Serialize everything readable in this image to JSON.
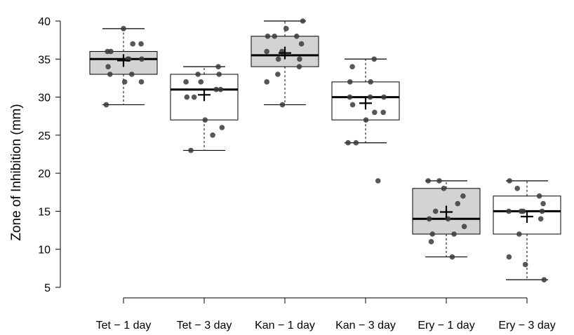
{
  "chart_data": {
    "type": "boxplot",
    "title": "",
    "xlabel": "",
    "ylabel": "Zone of Inhibition (mm)",
    "ylim": [
      5,
      40
    ],
    "yticks": [
      5,
      10,
      15,
      20,
      25,
      30,
      35,
      40
    ],
    "grid": false,
    "legend": "none",
    "colors": {
      "shaded": "#d3d3d3",
      "unshaded": "#ffffff",
      "points": "#3a3a3a",
      "lines": "#000000"
    },
    "categories": [
      "Tet − 1 day",
      "Tet − 3 day",
      "Kan − 1 day",
      "Kan − 3 day",
      "Ery − 1 day",
      "Ery − 3 day"
    ],
    "boxes": [
      {
        "category": "Tet − 1 day",
        "shaded": true,
        "whisker_low": 29,
        "q1": 33,
        "median": 35,
        "q3": 36,
        "whisker_high": 39,
        "mean": 34.8,
        "points": [
          39,
          37,
          37,
          36,
          36,
          35,
          35,
          35,
          34,
          33,
          33,
          32,
          32,
          29
        ]
      },
      {
        "category": "Tet − 3 day",
        "shaded": false,
        "whisker_low": 23,
        "q1": 27,
        "median": 31,
        "q3": 33,
        "whisker_high": 34,
        "mean": 30.3,
        "points": [
          34,
          33,
          33,
          32,
          32,
          31,
          31,
          30,
          30,
          27,
          26,
          25,
          23
        ]
      },
      {
        "category": "Kan − 1 day",
        "shaded": true,
        "whisker_low": 29,
        "q1": 34,
        "median": 35.5,
        "q3": 38,
        "whisker_high": 40,
        "mean": 35.8,
        "points": [
          40,
          39,
          38,
          38,
          38,
          37,
          36,
          36,
          35,
          35,
          34,
          33,
          32,
          29
        ]
      },
      {
        "category": "Kan − 3 day",
        "shaded": false,
        "whisker_low": 24,
        "q1": 27,
        "median": 30,
        "q3": 32,
        "whisker_high": 35,
        "mean": 29.2,
        "points": [
          35,
          34,
          32,
          32,
          30,
          30,
          30,
          29,
          28,
          28,
          27,
          24,
          24,
          19
        ]
      },
      {
        "category": "Ery − 1 day",
        "shaded": true,
        "whisker_low": 9,
        "q1": 12,
        "median": 14,
        "q3": 18,
        "whisker_high": 19,
        "mean": 14.9,
        "points": [
          19,
          19,
          18,
          17,
          16,
          15,
          14,
          14,
          13,
          12,
          12,
          11,
          9
        ]
      },
      {
        "category": "Ery − 3 day",
        "shaded": false,
        "whisker_low": 6,
        "q1": 12,
        "median": 15,
        "q3": 17,
        "whisker_high": 19,
        "mean": 14.3,
        "points": [
          19,
          18,
          17,
          16,
          15,
          15,
          15,
          15,
          14,
          12,
          9,
          8,
          6
        ]
      }
    ]
  }
}
